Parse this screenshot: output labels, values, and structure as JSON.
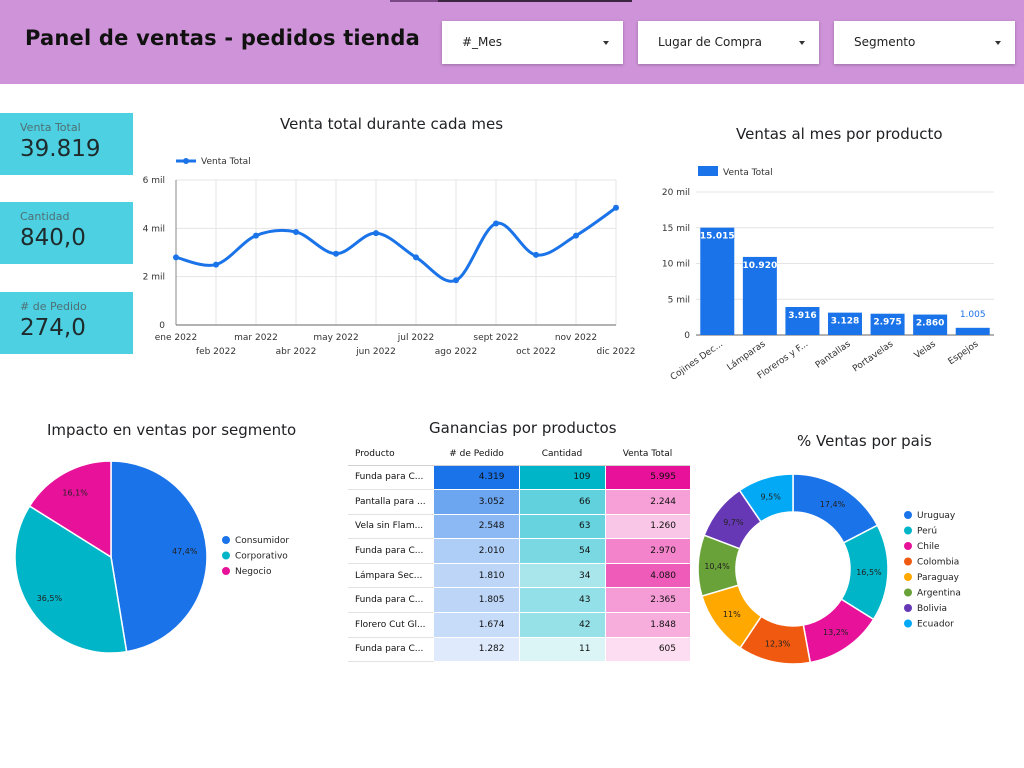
{
  "header": {
    "title": "Panel de ventas - pedidos tienda",
    "filters": [
      {
        "label": "#_Mes"
      },
      {
        "label": "Lugar de Compra"
      },
      {
        "label": "Segmento"
      }
    ],
    "background": "#ce93d8"
  },
  "kpis": [
    {
      "label": "Venta Total",
      "value": "39.819"
    },
    {
      "label": "Cantidad",
      "value": "840,0"
    },
    {
      "label": "# de Pedido",
      "value": "274,0"
    }
  ],
  "chart_data": [
    {
      "id": "monthly_sales",
      "type": "line",
      "title": "Venta total durante cada mes",
      "series": [
        {
          "name": "Venta Total",
          "values": [
            2800,
            2500,
            3700,
            3850,
            2950,
            3800,
            2800,
            1850,
            4200,
            2900,
            3700,
            4850
          ]
        }
      ],
      "categories": [
        "ene 2022",
        "feb 2022",
        "mar 2022",
        "abr 2022",
        "may 2022",
        "jun 2022",
        "jul 2022",
        "ago 2022",
        "sept 2022",
        "oct 2022",
        "nov 2022",
        "dic 2022"
      ],
      "yticks": [
        "0",
        "2 mil",
        "4 mil",
        "6 mil"
      ],
      "ylim": [
        0,
        6000
      ],
      "legend": "top-left",
      "color": "#1a73e8"
    },
    {
      "id": "product_sales",
      "type": "bar",
      "title": "Ventas al mes por producto",
      "series": [
        {
          "name": "Venta Total",
          "values": [
            15015,
            10920,
            3916,
            3128,
            2975,
            2860,
            1005
          ]
        }
      ],
      "labels": [
        "15.015",
        "10.920",
        "3.916",
        "3.128",
        "2.975",
        "2.860",
        "1.005"
      ],
      "categories": [
        "Cojines Dec...",
        "Lámparas",
        "Floreros y F...",
        "Pantallas",
        "Portavelas",
        "Velas",
        "Espejos"
      ],
      "yticks": [
        "0",
        "5 mil",
        "10 mil",
        "15 mil",
        "20 mil"
      ],
      "ylim": [
        0,
        20000
      ],
      "legend": "top-left",
      "color": "#1a73e8"
    },
    {
      "id": "segment_pie",
      "type": "pie",
      "title": "Impacto en ventas por segmento",
      "slices": [
        {
          "name": "Consumidor",
          "value": 47.4,
          "label": "47,4%",
          "color": "#1a73e8"
        },
        {
          "name": "Corporativo",
          "value": 36.5,
          "label": "36,5%",
          "color": "#00b5c8"
        },
        {
          "name": "Negocio",
          "value": 16.1,
          "label": "16,1%",
          "color": "#e8119a"
        }
      ],
      "legend": "right"
    },
    {
      "id": "country_donut",
      "type": "pie",
      "title": "% Ventas por pais",
      "slices": [
        {
          "name": "Uruguay",
          "value": 17.4,
          "label": "17,4%",
          "color": "#1a73e8"
        },
        {
          "name": "Perú",
          "value": 16.5,
          "label": "16,5%",
          "color": "#00b5c8"
        },
        {
          "name": "Chile",
          "value": 13.2,
          "label": "13,2%",
          "color": "#e8119a"
        },
        {
          "name": "Colombia",
          "value": 12.3,
          "label": "12,3%",
          "color": "#f05a10"
        },
        {
          "name": "Paraguay",
          "value": 11,
          "label": "11%",
          "color": "#ffa800"
        },
        {
          "name": "Argentina",
          "value": 10.4,
          "label": "10,4%",
          "color": "#6aa23a"
        },
        {
          "name": "Bolivia",
          "value": 9.7,
          "label": "9,7%",
          "color": "#6638b6"
        },
        {
          "name": "Ecuador",
          "value": 9.5,
          "label": "9,5%",
          "color": "#03a9f4"
        }
      ],
      "legend": "right"
    },
    {
      "id": "profit_table",
      "type": "table",
      "title": "Ganancias por productos",
      "columns": [
        "Producto",
        "# de Pedido",
        "Cantidad",
        "Venta Total"
      ],
      "rows": [
        {
          "producto": "Funda para C...",
          "pedido": "4.319",
          "cantidad": "109",
          "venta": "5.995"
        },
        {
          "producto": "Pantalla para ...",
          "pedido": "3.052",
          "cantidad": "66",
          "venta": "2.244"
        },
        {
          "producto": "Vela sin Flam...",
          "pedido": "2.548",
          "cantidad": "63",
          "venta": "1.260"
        },
        {
          "producto": "Funda para C...",
          "pedido": "2.010",
          "cantidad": "54",
          "venta": "2.970"
        },
        {
          "producto": "Lámpara Sec...",
          "pedido": "1.810",
          "cantidad": "34",
          "venta": "4.080"
        },
        {
          "producto": "Funda para C...",
          "pedido": "1.805",
          "cantidad": "43",
          "venta": "2.365"
        },
        {
          "producto": "Florero Cut Gl...",
          "pedido": "1.674",
          "cantidad": "42",
          "venta": "1.848"
        },
        {
          "producto": "Funda para C...",
          "pedido": "1.282",
          "cantidad": "11",
          "venta": "605"
        }
      ],
      "column_colors": [
        "#1a73e8",
        "#00b5c8",
        "#e8119a"
      ]
    }
  ]
}
